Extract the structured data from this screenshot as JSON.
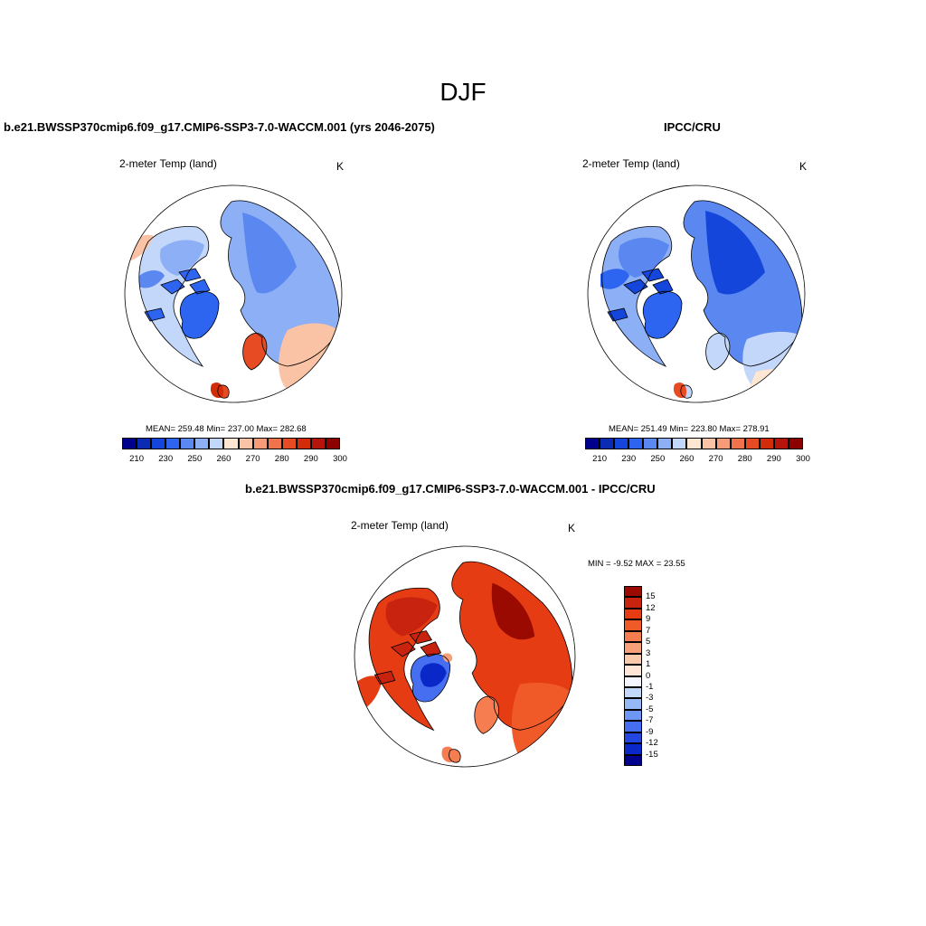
{
  "title": "DJF",
  "panels": {
    "model": {
      "title": "b.e21.BWSSP370cmip6.f09_g17.CMIP6-SSP3-7.0-WACCM.001 (yrs 2046-2075)",
      "variable": "2-meter Temp (land)",
      "units": "K",
      "stats": "MEAN= 259.48  Min= 237.00  Max= 282.68"
    },
    "obs": {
      "title": "IPCC/CRU",
      "variable": "2-meter Temp (land)",
      "units": "K",
      "stats": "MEAN= 251.49  Min= 223.80  Max= 278.91"
    },
    "diff": {
      "title": "b.e21.BWSSP370cmip6.f09_g17.CMIP6-SSP3-7.0-WACCM.001 - IPCC/CRU",
      "variable": "2-meter Temp (land)",
      "units": "K",
      "stats": "MIN =  -9.52 MAX =  23.55"
    }
  },
  "abs_colorbar": {
    "colors": [
      "#00008c",
      "#0a2bb4",
      "#1446dc",
      "#2d64f0",
      "#5a87f0",
      "#8caff5",
      "#c3d7fa",
      "#ffe6d2",
      "#fac3a5",
      "#f59b78",
      "#f0734b",
      "#e64b23",
      "#d22d0a",
      "#b4140a",
      "#8c0000"
    ],
    "tick_labels": [
      "210",
      "230",
      "250",
      "260",
      "270",
      "280",
      "290",
      "300"
    ]
  },
  "diff_colorbar": {
    "colors": [
      "#9a0a00",
      "#c8230f",
      "#e63c14",
      "#f05a28",
      "#f57d50",
      "#f5a078",
      "#fac8aa",
      "#ffe6d7",
      "#f5f5ff",
      "#c3d7fa",
      "#96b9f5",
      "#6e96f5",
      "#466ef0",
      "#2346e1",
      "#0a28c8",
      "#00008c"
    ],
    "tick_labels": [
      "15",
      "12",
      "9",
      "7",
      "5",
      "3",
      "1",
      "0",
      "-1",
      "-3",
      "-5",
      "-7",
      "-9",
      "-12",
      "-15"
    ]
  }
}
